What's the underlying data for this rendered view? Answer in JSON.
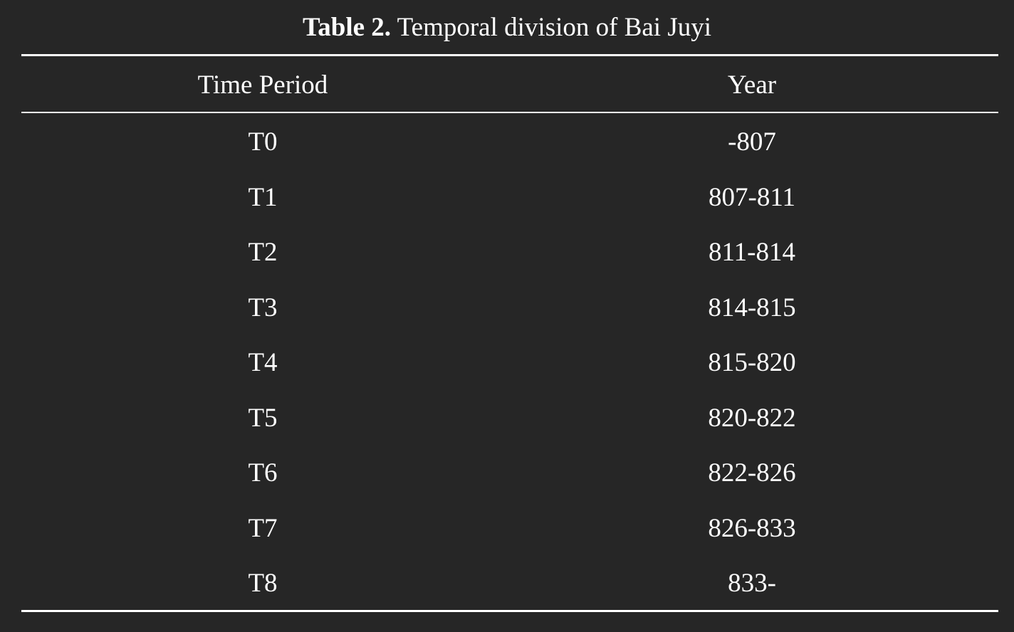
{
  "caption": {
    "label": "Table 2.",
    "text": "Temporal division of Bai Juyi"
  },
  "table": {
    "header": [
      "Time Period",
      "Year"
    ],
    "rows": [
      [
        "T0",
        "-807"
      ],
      [
        "T1",
        "807-811"
      ],
      [
        "T2",
        "811-814"
      ],
      [
        "T3",
        "814-815"
      ],
      [
        "T4",
        "815-820"
      ],
      [
        "T5",
        "820-822"
      ],
      [
        "T6",
        "822-826"
      ],
      [
        "T7",
        "826-833"
      ],
      [
        "T8",
        "833-"
      ]
    ]
  }
}
